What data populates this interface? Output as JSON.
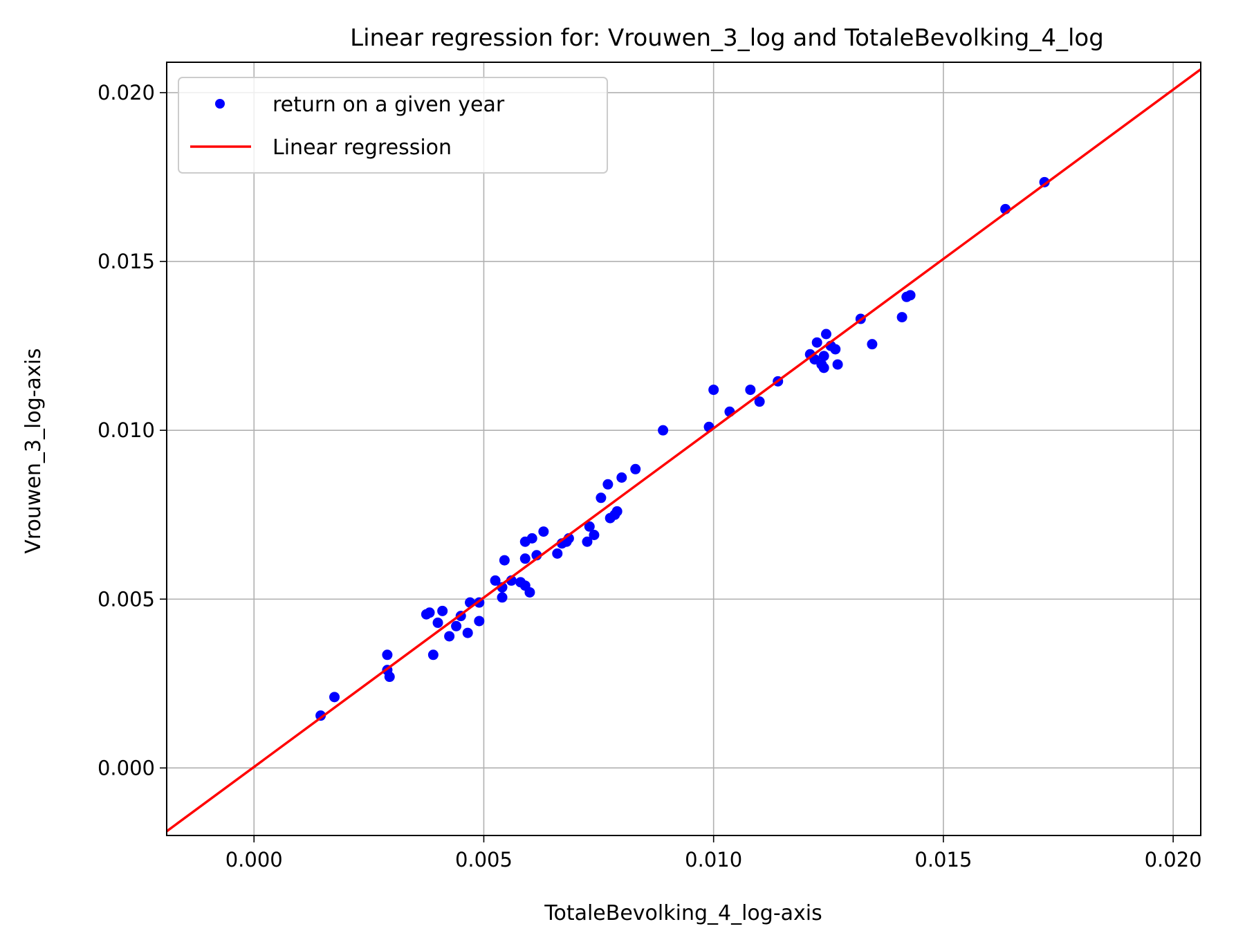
{
  "chart_data": {
    "type": "scatter",
    "title": "Linear regression for: Vrouwen_3_log and TotaleBevolking_4_log",
    "xlabel": "TotaleBevolking_4_log-axis",
    "ylabel": "Vrouwen_3_log-axis",
    "xlim": [
      -0.0019,
      0.0206
    ],
    "ylim": [
      -0.002,
      0.0209
    ],
    "xticks": [
      "0.000",
      "0.005",
      "0.010",
      "0.015",
      "0.020"
    ],
    "yticks": [
      "0.000",
      "0.005",
      "0.010",
      "0.015",
      "0.020"
    ],
    "grid": true,
    "legend_position": "top-left",
    "series": [
      {
        "name": "return on a given year",
        "kind": "scatter",
        "color": "#0000ff",
        "points": [
          [
            0.00145,
            0.00155
          ],
          [
            0.00175,
            0.0021
          ],
          [
            0.0029,
            0.00335
          ],
          [
            0.0029,
            0.0029
          ],
          [
            0.00295,
            0.0027
          ],
          [
            0.00375,
            0.00455
          ],
          [
            0.00382,
            0.0046
          ],
          [
            0.0039,
            0.00335
          ],
          [
            0.004,
            0.0043
          ],
          [
            0.0041,
            0.00465
          ],
          [
            0.00425,
            0.0039
          ],
          [
            0.0044,
            0.0042
          ],
          [
            0.0045,
            0.0045
          ],
          [
            0.00465,
            0.004
          ],
          [
            0.0047,
            0.0049
          ],
          [
            0.0049,
            0.00435
          ],
          [
            0.0049,
            0.0049
          ],
          [
            0.00525,
            0.00555
          ],
          [
            0.0054,
            0.00505
          ],
          [
            0.0054,
            0.00535
          ],
          [
            0.00545,
            0.00615
          ],
          [
            0.0056,
            0.00555
          ],
          [
            0.0058,
            0.0055
          ],
          [
            0.0059,
            0.0054
          ],
          [
            0.0059,
            0.0062
          ],
          [
            0.0059,
            0.0067
          ],
          [
            0.006,
            0.0052
          ],
          [
            0.00605,
            0.0068
          ],
          [
            0.00615,
            0.0063
          ],
          [
            0.0063,
            0.007
          ],
          [
            0.0066,
            0.00635
          ],
          [
            0.0067,
            0.00665
          ],
          [
            0.0068,
            0.0067
          ],
          [
            0.00685,
            0.0068
          ],
          [
            0.00725,
            0.0067
          ],
          [
            0.0073,
            0.00715
          ],
          [
            0.0074,
            0.0069
          ],
          [
            0.00755,
            0.008
          ],
          [
            0.0077,
            0.0084
          ],
          [
            0.00775,
            0.0074
          ],
          [
            0.00785,
            0.0075
          ],
          [
            0.0079,
            0.0076
          ],
          [
            0.008,
            0.0086
          ],
          [
            0.0083,
            0.00885
          ],
          [
            0.0089,
            0.01
          ],
          [
            0.0099,
            0.0101
          ],
          [
            0.01,
            0.0112
          ],
          [
            0.01035,
            0.01055
          ],
          [
            0.0108,
            0.0112
          ],
          [
            0.011,
            0.01085
          ],
          [
            0.0114,
            0.01145
          ],
          [
            0.0121,
            0.01225
          ],
          [
            0.0122,
            0.0121
          ],
          [
            0.01225,
            0.0126
          ],
          [
            0.01235,
            0.01195
          ],
          [
            0.0124,
            0.01185
          ],
          [
            0.0124,
            0.0122
          ],
          [
            0.01245,
            0.01285
          ],
          [
            0.01255,
            0.0125
          ],
          [
            0.01265,
            0.0124
          ],
          [
            0.0127,
            0.01195
          ],
          [
            0.0132,
            0.0133
          ],
          [
            0.01345,
            0.01255
          ],
          [
            0.0141,
            0.01335
          ],
          [
            0.0142,
            0.01395
          ],
          [
            0.01428,
            0.014
          ],
          [
            0.01635,
            0.01655
          ],
          [
            0.0172,
            0.01735
          ]
        ]
      },
      {
        "name": "Linear regression",
        "kind": "line",
        "color": "#ff0000",
        "slope": 1.003,
        "intercept": 3e-05
      }
    ]
  }
}
